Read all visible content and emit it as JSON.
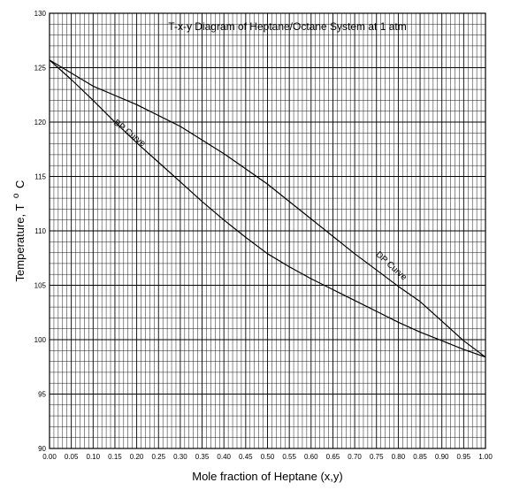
{
  "chart_data": {
    "type": "line",
    "title": "T-x-y Diagram of Heptane/Octane System at 1 atm",
    "xlabel": "Mole fraction of Heptane (x,y)",
    "ylabel": "Temperature, T",
    "ylabel_sup": "o",
    "ylabel_unit": "C",
    "xlim": [
      0,
      1
    ],
    "ylim": [
      90,
      130
    ],
    "x_minor_step": 0.01,
    "y_minor_step": 1,
    "x_ticks": [
      "0.00",
      "0.05",
      "0.10",
      "0.15",
      "0.20",
      "0.25",
      "0.30",
      "0.35",
      "0.40",
      "0.45",
      "0.50",
      "0.55",
      "0.60",
      "0.65",
      "0.70",
      "0.75",
      "0.80",
      "0.85",
      "0.90",
      "0.95",
      "1.00"
    ],
    "y_ticks": [
      "90",
      "95",
      "100",
      "105",
      "110",
      "115",
      "120",
      "125",
      "130"
    ],
    "grid": true,
    "series": [
      {
        "name": "BP Curve",
        "x": [
          0.0,
          0.05,
          0.1,
          0.15,
          0.2,
          0.25,
          0.3,
          0.35,
          0.4,
          0.45,
          0.5,
          0.55,
          0.6,
          0.65,
          0.7,
          0.75,
          0.8,
          0.85,
          0.9,
          0.95,
          1.0
        ],
        "y": [
          125.7,
          123.9,
          122.0,
          120.0,
          118.1,
          116.3,
          114.5,
          112.7,
          111.0,
          109.4,
          107.9,
          106.7,
          105.6,
          104.6,
          103.6,
          102.6,
          101.6,
          100.7,
          99.9,
          99.1,
          98.4
        ]
      },
      {
        "name": "DP Curve",
        "x": [
          0.0,
          0.1,
          0.2,
          0.3,
          0.4,
          0.5,
          0.6,
          0.7,
          0.8,
          0.85,
          0.9,
          0.95,
          1.0
        ],
        "y": [
          125.7,
          123.3,
          121.6,
          119.6,
          117.1,
          114.3,
          111.1,
          107.9,
          104.9,
          103.5,
          101.7,
          99.9,
          98.4
        ]
      }
    ],
    "annotations": [
      {
        "text": "BP Curve",
        "x": 0.18,
        "y": 118.8,
        "angle": 38
      },
      {
        "text": "DP Curve",
        "x": 0.78,
        "y": 106.6,
        "angle": 42
      }
    ]
  }
}
